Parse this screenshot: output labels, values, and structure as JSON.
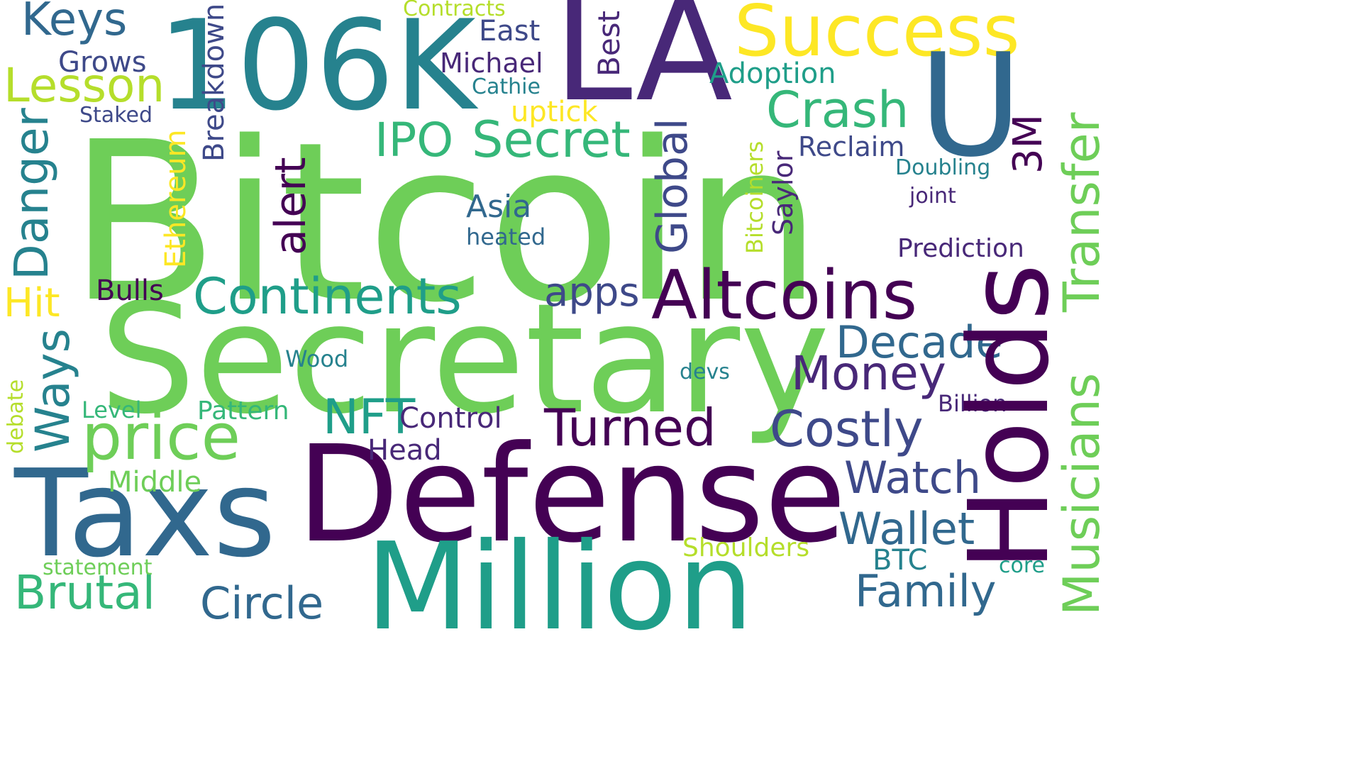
{
  "background_color": "#ffffff",
  "palette": {
    "dark_purple": "#440154",
    "purple": "#482878",
    "indigo": "#3e4989",
    "slate_blue": "#31688e",
    "teal": "#26828e",
    "sea_green": "#1f9e89",
    "green": "#35b779",
    "light_green": "#6ece58",
    "lime": "#b5de2b",
    "yellow": "#fde725"
  },
  "words": [
    {
      "text": "Bitcoin",
      "color": "#6ece58"
    },
    {
      "text": "Secretary",
      "color": "#6ece58"
    },
    {
      "text": "Defense",
      "color": "#440154"
    },
    {
      "text": "Million",
      "color": "#1f9e89"
    },
    {
      "text": "106K",
      "color": "#26828e"
    },
    {
      "text": "LA",
      "color": "#482878"
    },
    {
      "text": "Success",
      "color": "#fde725"
    },
    {
      "text": "U",
      "color": "#31688e"
    },
    {
      "text": "Holds",
      "color": "#440154"
    },
    {
      "text": "Taxs",
      "color": "#31688e"
    },
    {
      "text": "Altcoins",
      "color": "#440154"
    },
    {
      "text": "Keys",
      "color": "#31688e"
    },
    {
      "text": "Lesson",
      "color": "#b5de2b"
    },
    {
      "text": "Crash",
      "color": "#35b779"
    },
    {
      "text": "Secret",
      "color": "#35b779"
    },
    {
      "text": "IPO",
      "color": "#35b779"
    },
    {
      "text": "Continents",
      "color": "#1f9e89"
    },
    {
      "text": "price",
      "color": "#6ece58"
    },
    {
      "text": "Turned",
      "color": "#440154"
    },
    {
      "text": "Costly",
      "color": "#3e4989"
    },
    {
      "text": "Money",
      "color": "#482878"
    },
    {
      "text": "Decade",
      "color": "#31688e"
    },
    {
      "text": "Watch",
      "color": "#3e4989"
    },
    {
      "text": "Wallet",
      "color": "#31688e"
    },
    {
      "text": "Family",
      "color": "#31688e"
    },
    {
      "text": "Brutal",
      "color": "#35b779"
    },
    {
      "text": "Circle",
      "color": "#31688e"
    },
    {
      "text": "NFT",
      "color": "#1f9e89"
    },
    {
      "text": "apps",
      "color": "#3e4989"
    },
    {
      "text": "Hit",
      "color": "#fde725"
    },
    {
      "text": "Adoption",
      "color": "#1f9e89"
    },
    {
      "text": "Grows",
      "color": "#3e4989"
    },
    {
      "text": "East",
      "color": "#3e4989"
    },
    {
      "text": "Michael",
      "color": "#482878"
    },
    {
      "text": "Cathie",
      "color": "#26828e"
    },
    {
      "text": "uptick",
      "color": "#fde725"
    },
    {
      "text": "Contracts",
      "color": "#b5de2b"
    },
    {
      "text": "Staked",
      "color": "#3e4989"
    },
    {
      "text": "Reclaim",
      "color": "#3e4989"
    },
    {
      "text": "Doubling",
      "color": "#26828e"
    },
    {
      "text": "joint",
      "color": "#482878"
    },
    {
      "text": "Asia",
      "color": "#31688e"
    },
    {
      "text": "heated",
      "color": "#31688e"
    },
    {
      "text": "Prediction",
      "color": "#482878"
    },
    {
      "text": "Bulls",
      "color": "#440154"
    },
    {
      "text": "Control",
      "color": "#482878"
    },
    {
      "text": "Head",
      "color": "#482878"
    },
    {
      "text": "Level",
      "color": "#35b779"
    },
    {
      "text": "Pattern",
      "color": "#35b779"
    },
    {
      "text": "Middle",
      "color": "#6ece58"
    },
    {
      "text": "Wood",
      "color": "#26828e"
    },
    {
      "text": "devs",
      "color": "#26828e"
    },
    {
      "text": "Billion",
      "color": "#482878"
    },
    {
      "text": "Shoulders",
      "color": "#b5de2b"
    },
    {
      "text": "BTC",
      "color": "#26828e"
    },
    {
      "text": "core",
      "color": "#1f9e89"
    },
    {
      "text": "statement",
      "color": "#6ece58"
    },
    {
      "text": "Danger",
      "color": "#26828e"
    },
    {
      "text": "Ways",
      "color": "#26828e"
    },
    {
      "text": "debate",
      "color": "#b5de2b"
    },
    {
      "text": "Breakdown",
      "color": "#3e4989"
    },
    {
      "text": "Ethereum",
      "color": "#fde725"
    },
    {
      "text": "alert",
      "color": "#440154"
    },
    {
      "text": "Global",
      "color": "#3e4989"
    },
    {
      "text": "Best",
      "color": "#482878"
    },
    {
      "text": "Bitcoiners",
      "color": "#b5de2b"
    },
    {
      "text": "Saylor",
      "color": "#482878"
    },
    {
      "text": "3M",
      "color": "#440154"
    },
    {
      "text": "Transfer",
      "color": "#6ece58"
    },
    {
      "text": "Musicians",
      "color": "#6ece58"
    }
  ]
}
